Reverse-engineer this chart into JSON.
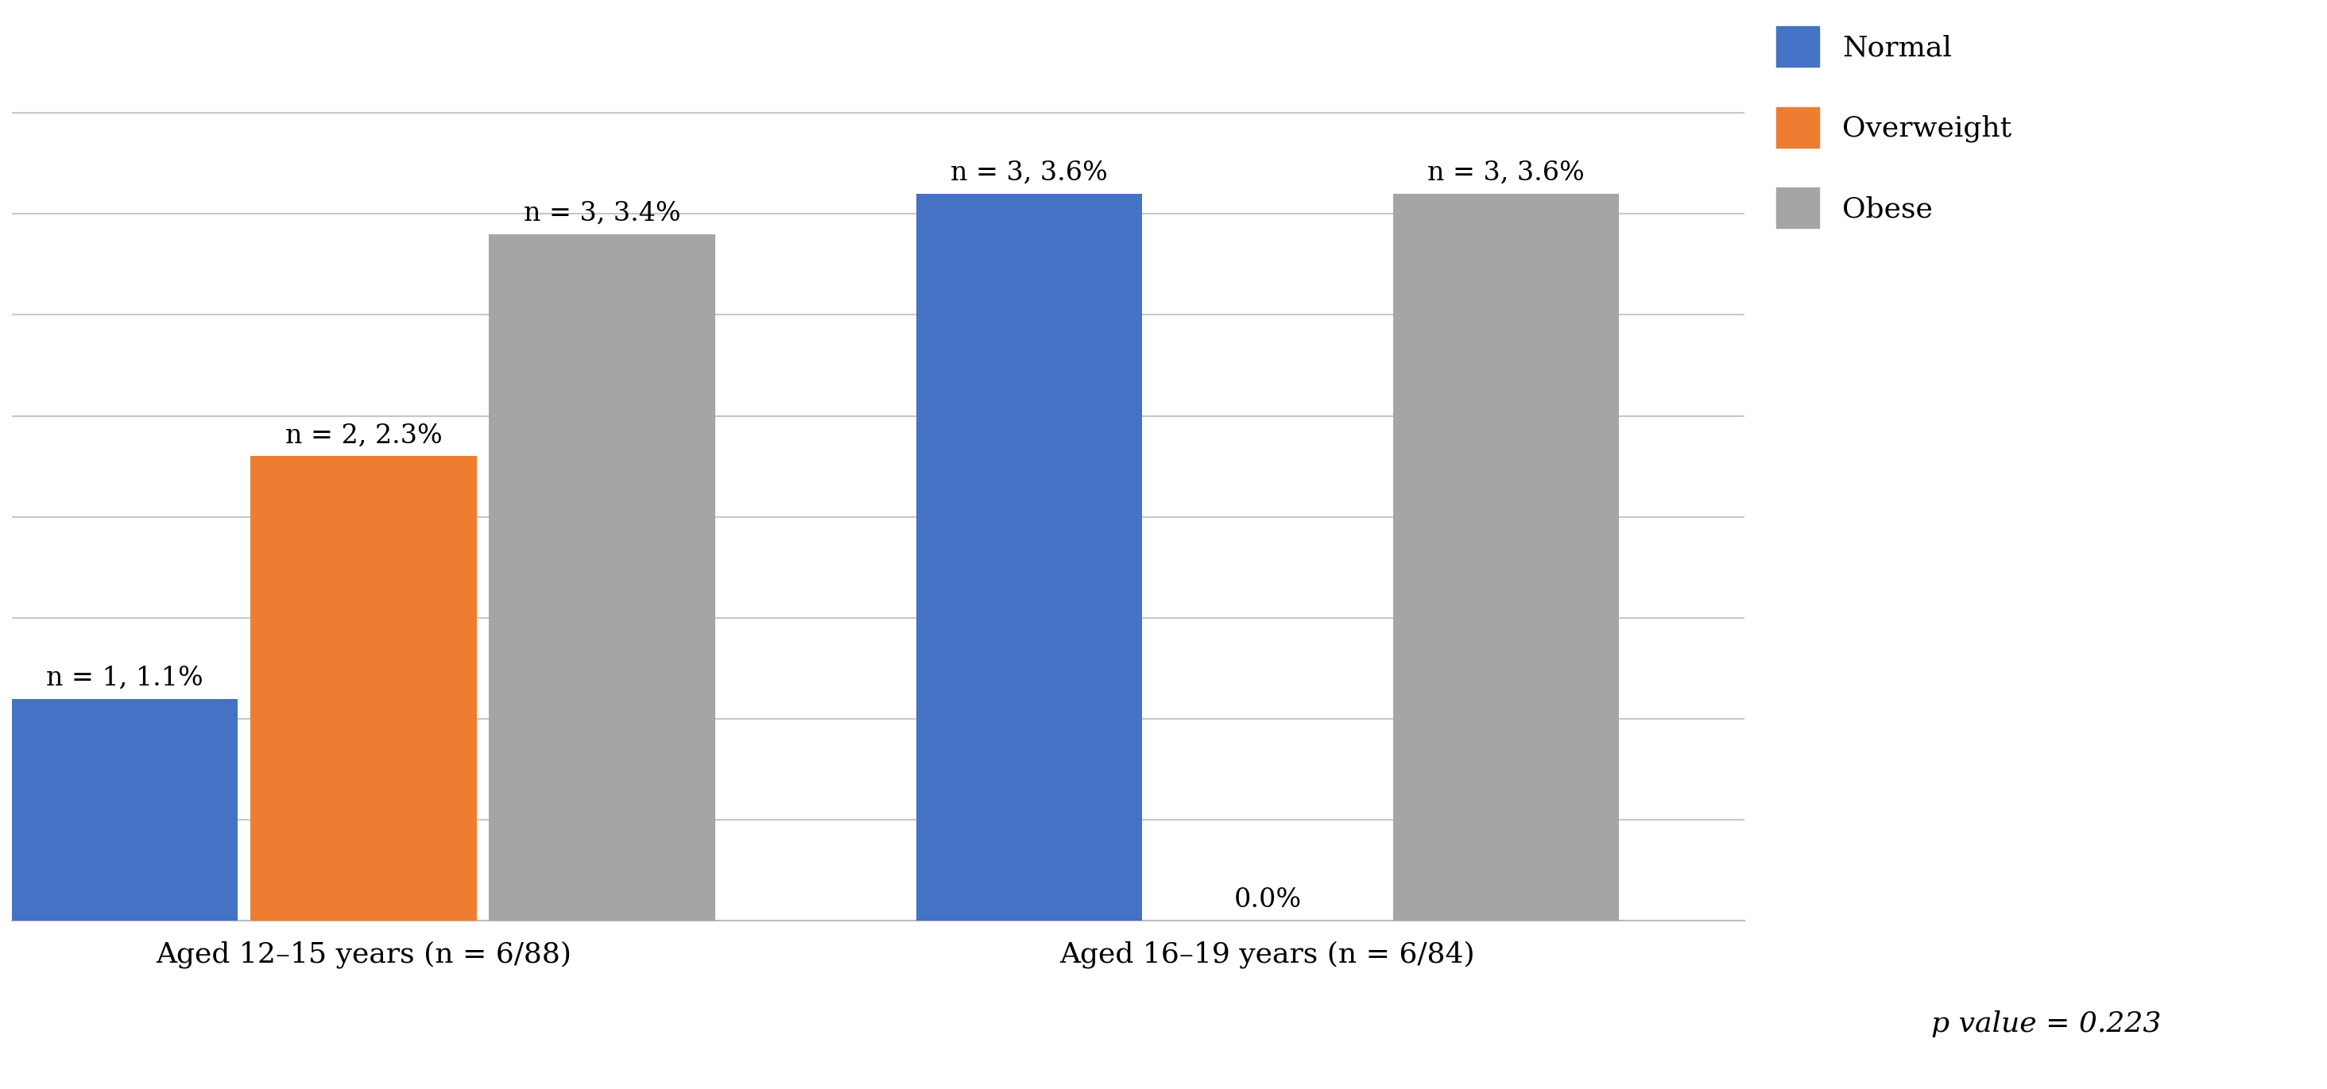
{
  "groups": [
    "Aged 12–15 years (n = 6/88)",
    "Aged 16–19 years (n = 6/84)"
  ],
  "categories": [
    "Normal",
    "Overweight",
    "Obese"
  ],
  "colors": [
    "#4472C4",
    "#ED7D31",
    "#A5A5A5"
  ],
  "values": [
    [
      1.1,
      2.3,
      3.4
    ],
    [
      3.6,
      0.0,
      3.6
    ]
  ],
  "labels": [
    [
      "n = 1, 1.1%",
      "n = 2, 2.3%",
      "n = 3, 3.4%"
    ],
    [
      "n = 3, 3.6%",
      "0.0%",
      "n = 3, 3.6%"
    ]
  ],
  "ylim": [
    0,
    4.5
  ],
  "yticks": [
    0,
    0.5,
    1.0,
    1.5,
    2.0,
    2.5,
    3.0,
    3.5,
    4.0
  ],
  "p_value_text_italic": "p",
  "p_value_text_normal": " value = 0.223",
  "background_color": "#FFFFFF",
  "grid_color": "#C8C8C8",
  "bar_width": 0.18,
  "legend_labels": [
    "Normal",
    "Overweight",
    "Obese"
  ],
  "tick_fontsize": 26,
  "legend_fontsize": 26,
  "annotation_fontsize": 24
}
